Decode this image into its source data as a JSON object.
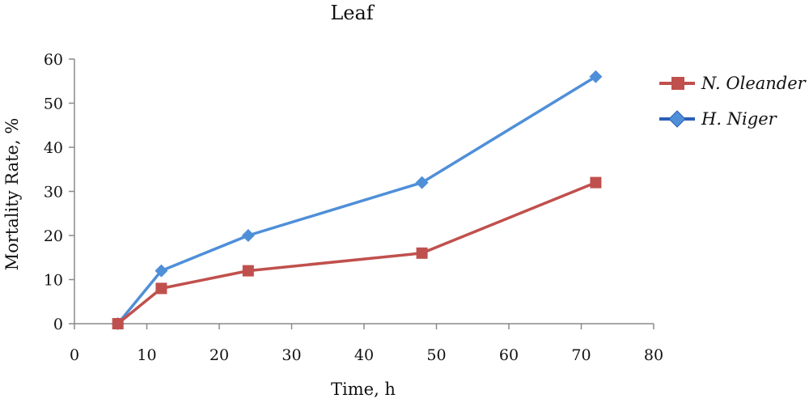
{
  "chart_data": {
    "type": "line",
    "title": "Leaf",
    "xlabel": "Time, h",
    "ylabel": "Mortality Rate, %",
    "xlim": [
      0,
      80
    ],
    "ylim": [
      0,
      60
    ],
    "xticks": [
      0,
      10,
      20,
      30,
      40,
      50,
      60,
      70,
      80
    ],
    "yticks": [
      0,
      10,
      20,
      30,
      40,
      50,
      60
    ],
    "grid": false,
    "legend_position": "right",
    "series": [
      {
        "name": "N. Oleander",
        "color": "#c0504d",
        "marker": "square",
        "points": [
          [
            6,
            0
          ],
          [
            12,
            8
          ],
          [
            24,
            12
          ],
          [
            48,
            16
          ],
          [
            72,
            32
          ]
        ]
      },
      {
        "name": "H. Niger",
        "color": "#4f8fd8",
        "marker": "diamond",
        "points": [
          [
            6,
            0
          ],
          [
            12,
            12
          ],
          [
            24,
            20
          ],
          [
            48,
            32
          ],
          [
            72,
            56
          ]
        ]
      }
    ]
  }
}
